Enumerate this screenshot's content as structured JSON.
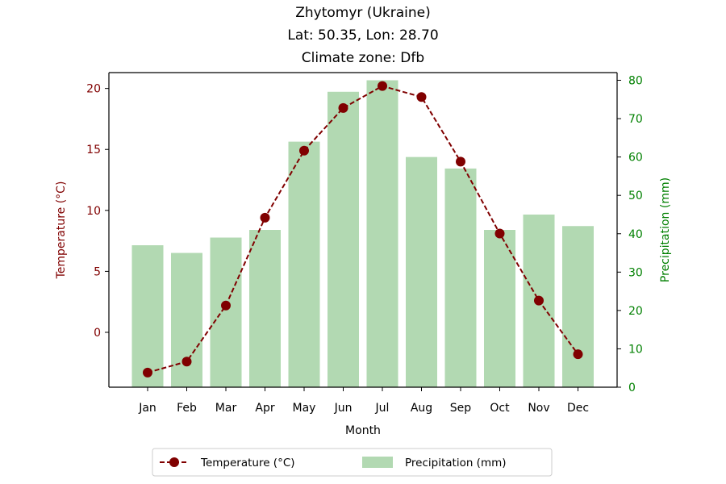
{
  "chart_data": {
    "type": "bar",
    "title": [
      "Zhytomyr (Ukraine)",
      "Lat: 50.35, Lon: 28.70",
      "Climate zone: Dfb"
    ],
    "xlabel": "Month",
    "categories": [
      "Jan",
      "Feb",
      "Mar",
      "Apr",
      "May",
      "Jun",
      "Jul",
      "Aug",
      "Sep",
      "Oct",
      "Nov",
      "Dec"
    ],
    "series": [
      {
        "name": "Temperature (°C)",
        "type": "line",
        "axis": "left",
        "color": "#800000",
        "values": [
          -3.3,
          -2.4,
          2.2,
          9.4,
          14.9,
          18.4,
          20.2,
          19.3,
          14.0,
          8.1,
          2.6,
          -1.8
        ]
      },
      {
        "name": "Precipitation (mm)",
        "type": "bar",
        "axis": "right",
        "color": "#008000",
        "values": [
          37,
          35,
          39,
          41,
          64,
          77,
          80,
          60,
          57,
          41,
          45,
          42
        ]
      }
    ],
    "y_left": {
      "label": "Temperature (°C)",
      "color": "#800000",
      "ylim": [
        -4.5,
        21.3
      ],
      "ticks": [
        0,
        5,
        10,
        15,
        20
      ]
    },
    "y_right": {
      "label": "Precipitation (mm)",
      "color": "#008000",
      "ylim": [
        0,
        82
      ],
      "ticks": [
        0,
        10,
        20,
        30,
        40,
        50,
        60,
        70,
        80
      ]
    },
    "legend": {
      "placement": "bottom-center",
      "entries": [
        "Temperature (°C)",
        "Precipitation (mm)"
      ]
    },
    "grid": false
  }
}
